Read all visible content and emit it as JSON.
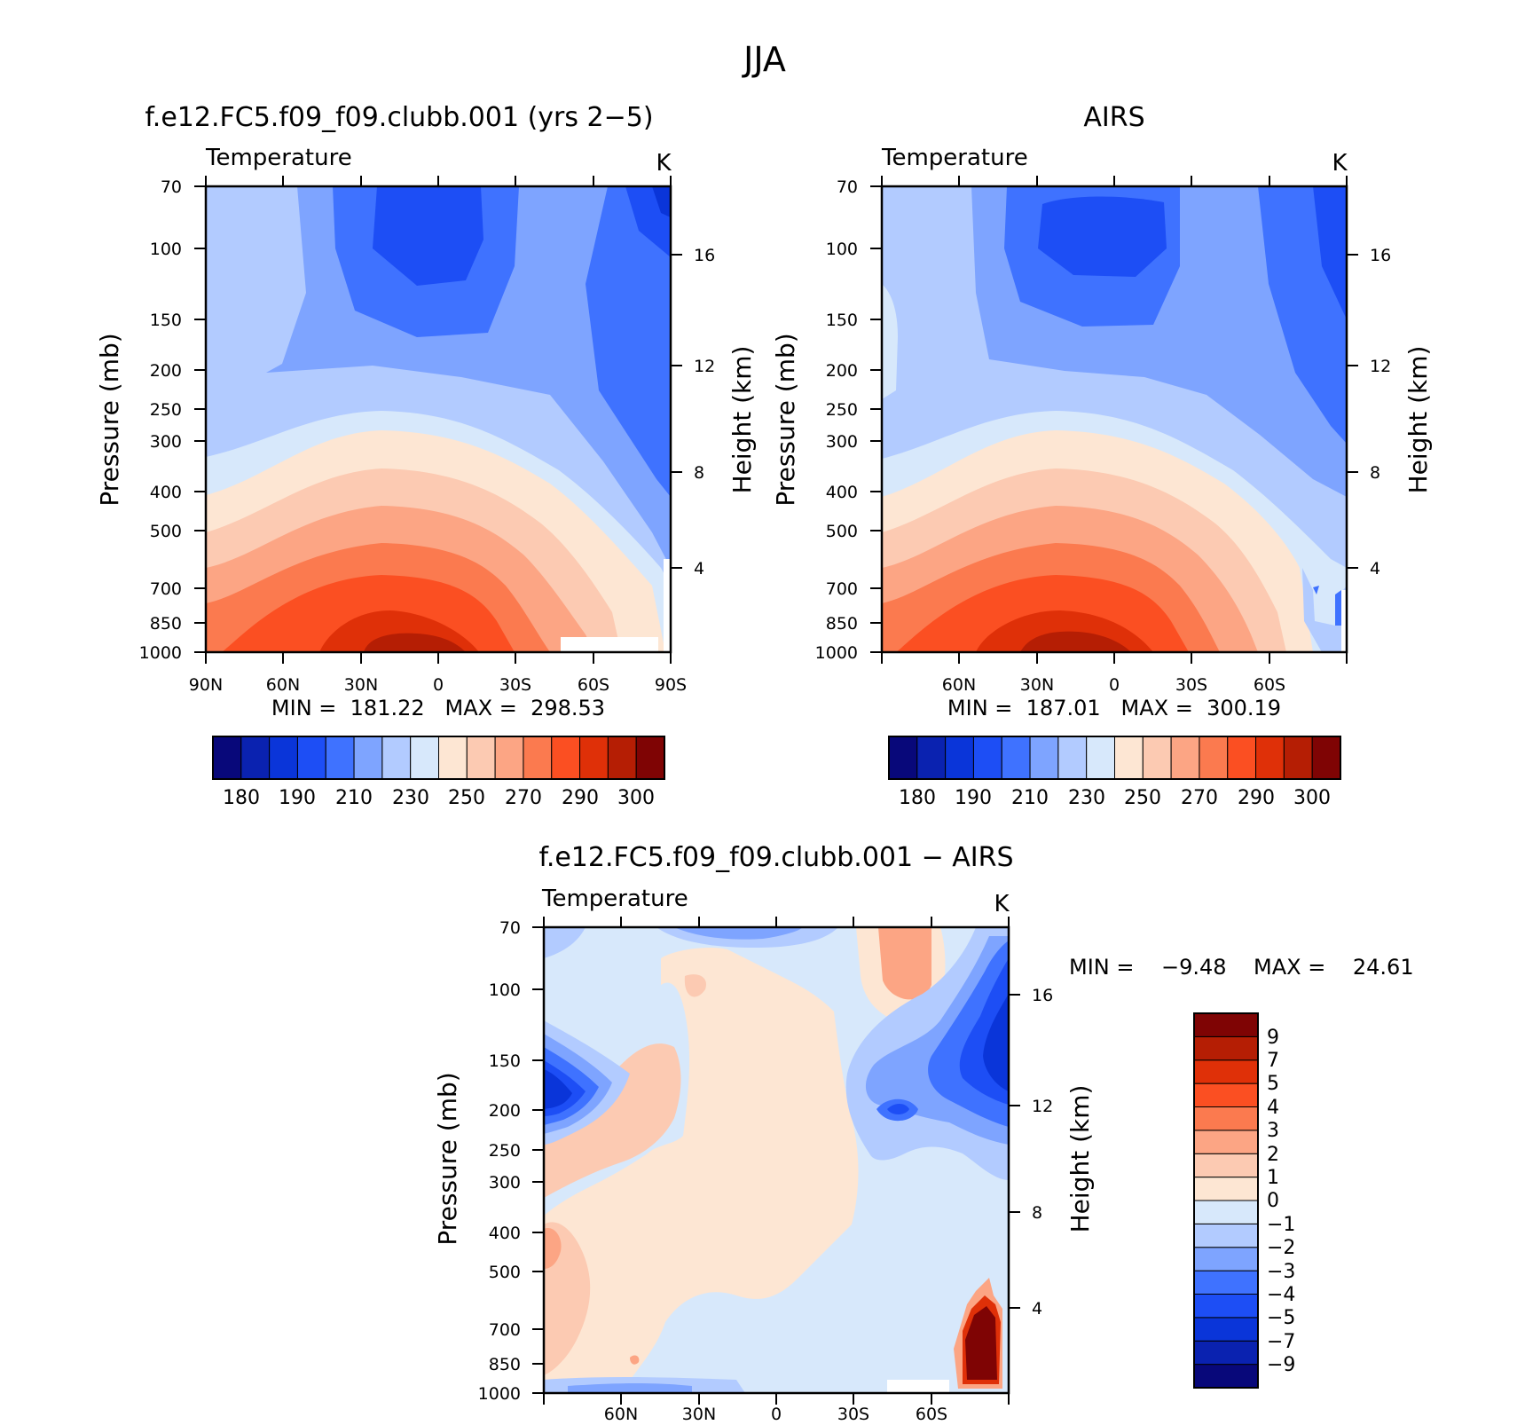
{
  "figure_title": "JJA",
  "colors": {
    "abs_palette": [
      "#08087a",
      "#0a22b0",
      "#0a35d9",
      "#1d4ef5",
      "#3f72ff",
      "#7ea4ff",
      "#b2cbff",
      "#d7e8fb",
      "#fde6d3",
      "#fccab2",
      "#fca584",
      "#fb7a4f",
      "#fb4f22",
      "#df3008",
      "#b51e04",
      "#7f0404"
    ],
    "diff_palette": [
      "#08087a",
      "#0a22b0",
      "#0a35d9",
      "#1d4ef5",
      "#3f72ff",
      "#7ea4ff",
      "#b2cbff",
      "#d7e8fb",
      "#fde6d3",
      "#fccab2",
      "#fca584",
      "#fb7a4f",
      "#fb4f22",
      "#df3008",
      "#b51e04",
      "#7f0404"
    ]
  },
  "chart_data": [
    {
      "type": "heatmap",
      "title": "f.e12.FC5.f09_f09.clubb.001 (yrs 2−5)",
      "variable": "Temperature",
      "units": "K",
      "ylabel": "Pressure (mb)",
      "y2label": "Height (km)",
      "x_ticks": [
        "90N",
        "60N",
        "30N",
        "0",
        "30S",
        "60S",
        "90S"
      ],
      "y_ticks": [
        "70",
        "100",
        "150",
        "200",
        "250",
        "300",
        "400",
        "500",
        "700",
        "850",
        "1000"
      ],
      "y2_ticks": [
        "16",
        "12",
        "8",
        "4"
      ],
      "stats": "MIN =  181.22   MAX =  298.53",
      "colorbar_ticks": [
        "180",
        "190",
        "210",
        "230",
        "250",
        "270",
        "290",
        "300"
      ]
    },
    {
      "type": "heatmap",
      "title": "AIRS",
      "variable": "Temperature",
      "units": "K",
      "ylabel": "Pressure (mb)",
      "y2label": "Height (km)",
      "x_ticks": [
        "60N",
        "30N",
        "0",
        "30S",
        "60S"
      ],
      "y_ticks": [
        "70",
        "100",
        "150",
        "200",
        "250",
        "300",
        "400",
        "500",
        "700",
        "850",
        "1000"
      ],
      "y2_ticks": [
        "16",
        "12",
        "8",
        "4"
      ],
      "stats": "MIN =  187.01   MAX =  300.19",
      "colorbar_ticks": [
        "180",
        "190",
        "210",
        "230",
        "250",
        "270",
        "290",
        "300"
      ]
    },
    {
      "type": "heatmap",
      "title": "f.e12.FC5.f09_f09.clubb.001 − AIRS",
      "variable": "Temperature",
      "units": "K",
      "ylabel": "Pressure (mb)",
      "y2label": "Height (km)",
      "x_ticks": [
        "60N",
        "30N",
        "0",
        "30S",
        "60S"
      ],
      "y_ticks": [
        "70",
        "100",
        "150",
        "200",
        "250",
        "300",
        "400",
        "500",
        "700",
        "850",
        "1000"
      ],
      "y2_ticks": [
        "16",
        "12",
        "8",
        "4"
      ],
      "stats": "MIN =    −9.48    MAX =    24.61",
      "colorbar_ticks": [
        "9",
        "7",
        "5",
        "4",
        "3",
        "2",
        "1",
        "0",
        "−1",
        "−2",
        "−3",
        "−4",
        "−5",
        "−7",
        "−9"
      ]
    }
  ]
}
